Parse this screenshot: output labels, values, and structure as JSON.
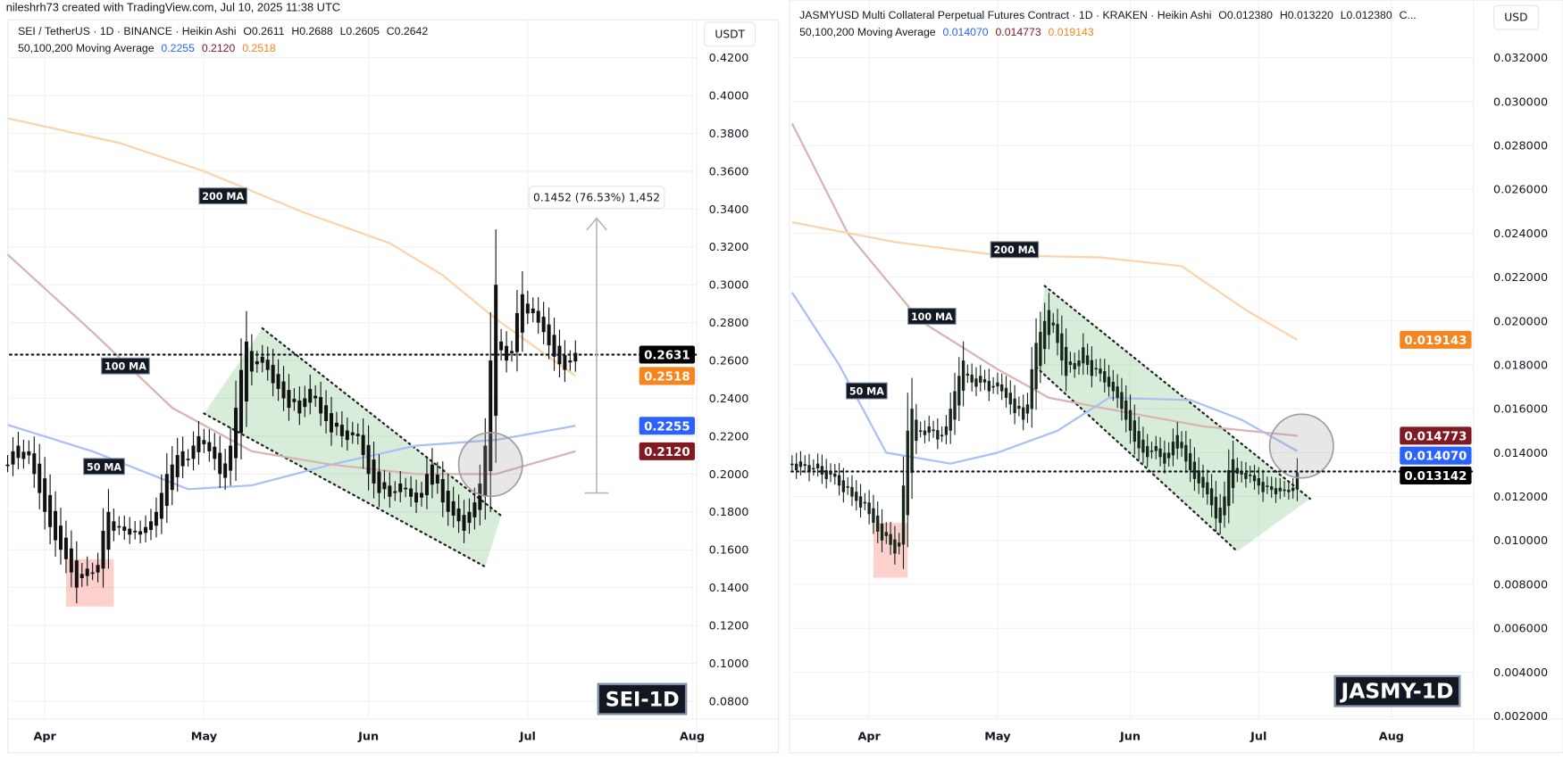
{
  "credit": "nileshrh73 created with TradingView.com, Jul 10, 2025 11:38 UTC",
  "colors": {
    "ma50": "#a9bff5",
    "ma100": "#d9b3b3",
    "ma200": "#fdd3ab",
    "channel_fill": "#4caf50",
    "box_fill": "#f44336",
    "circle": "#9e9e9e",
    "candle_sei": "#111111",
    "candle_jasmy": "#17261a",
    "price_line": "#131722"
  },
  "chart_data": [
    {
      "type": "candlestick",
      "symbol_line": {
        "title": "SEI / TetherUS · 1D · BINANCE · Heikin Ashi",
        "o": "O0.2611",
        "h": "H0.2688",
        "l": "L0.2605",
        "c": "C0.2642"
      },
      "ma_line": {
        "label": "50,100,200 Moving Average",
        "ma50": "0.2255",
        "ma100": "0.2120",
        "ma200": "0.2518"
      },
      "currency": "USDT",
      "tag": "SEI-1D",
      "start_date": "2025-03-25",
      "closes": [
        0.205,
        0.212,
        0.215,
        0.208,
        0.212,
        0.2,
        0.19,
        0.18,
        0.172,
        0.165,
        0.16,
        0.155,
        0.148,
        0.14,
        0.145,
        0.15,
        0.148,
        0.152,
        0.17,
        0.18,
        0.175,
        0.172,
        0.17,
        0.168,
        0.17,
        0.168,
        0.172,
        0.175,
        0.18,
        0.19,
        0.2,
        0.205,
        0.21,
        0.212,
        0.208,
        0.215,
        0.22,
        0.218,
        0.212,
        0.208,
        0.2,
        0.198,
        0.215,
        0.235,
        0.255,
        0.27,
        0.265,
        0.258,
        0.262,
        0.255,
        0.248,
        0.245,
        0.24,
        0.235,
        0.238,
        0.232,
        0.24,
        0.245,
        0.24,
        0.232,
        0.228,
        0.222,
        0.225,
        0.22,
        0.218,
        0.222,
        0.22,
        0.21,
        0.2,
        0.195,
        0.19,
        0.192,
        0.188,
        0.19,
        0.195,
        0.192,
        0.188,
        0.185,
        0.19,
        0.2,
        0.205,
        0.195,
        0.185,
        0.18,
        0.178,
        0.175,
        0.17,
        0.18,
        0.185,
        0.195,
        0.215,
        0.26,
        0.3,
        0.27,
        0.26,
        0.265,
        0.285,
        0.295,
        0.29,
        0.285,
        0.28,
        0.275,
        0.268,
        0.262,
        0.258,
        0.255,
        0.26,
        0.264
      ],
      "ma50": [
        [
          "2025-03-25",
          0.226
        ],
        [
          "2025-04-10",
          0.212
        ],
        [
          "2025-04-28",
          0.192
        ],
        [
          "2025-05-10",
          0.194
        ],
        [
          "2025-05-25",
          0.205
        ],
        [
          "2025-06-10",
          0.215
        ],
        [
          "2025-06-25",
          0.218
        ],
        [
          "2025-07-10",
          0.2255
        ]
      ],
      "ma100": [
        [
          "2025-03-25",
          0.316
        ],
        [
          "2025-04-10",
          0.275
        ],
        [
          "2025-04-25",
          0.235
        ],
        [
          "2025-05-10",
          0.212
        ],
        [
          "2025-05-25",
          0.205
        ],
        [
          "2025-06-10",
          0.2
        ],
        [
          "2025-06-25",
          0.2
        ],
        [
          "2025-07-10",
          0.212
        ]
      ],
      "ma200": [
        [
          "2025-03-25",
          0.388
        ],
        [
          "2025-04-15",
          0.375
        ],
        [
          "2025-05-01",
          0.36
        ],
        [
          "2025-05-20",
          0.338
        ],
        [
          "2025-06-05",
          0.322
        ],
        [
          "2025-06-15",
          0.305
        ],
        [
          "2025-06-25",
          0.282
        ],
        [
          "2025-07-10",
          0.2518
        ]
      ],
      "ma_labels": [
        "200 MA",
        "100 MA",
        "50 MA"
      ],
      "y_ticks": [
        "0.4200",
        "0.4000",
        "0.3800",
        "0.3600",
        "0.3400",
        "0.3200",
        "0.3000",
        "0.2800",
        "0.2600",
        "0.2400",
        "0.2200",
        "0.2000",
        "0.1800",
        "0.1600",
        "0.1400",
        "0.1200",
        "0.1000",
        "0.0800"
      ],
      "x_ticks": [
        [
          "Apr",
          "2025-04-01"
        ],
        [
          "May",
          "2025-05-01"
        ],
        [
          "Jun",
          "2025-06-01"
        ],
        [
          "Jul",
          "2025-07-01"
        ],
        [
          "Aug",
          "2025-08-01"
        ]
      ],
      "price_badges": [
        {
          "value": "0.2631",
          "color": "#000000"
        },
        {
          "value": "0.2518",
          "color": "#f7851e"
        },
        {
          "value": "0.2255",
          "color": "#2962ff"
        },
        {
          "value": "0.2120",
          "color": "#801922"
        }
      ],
      "last_price": 0.2631,
      "channel": [
        [
          "2025-05-01",
          0.232
        ],
        [
          "2025-05-12",
          0.277
        ],
        [
          "2025-06-26",
          0.178
        ],
        [
          "2025-06-23",
          0.151
        ]
      ],
      "box": {
        "from": "2025-04-05",
        "to": "2025-04-14",
        "low": 0.13,
        "high": 0.155
      },
      "circle": {
        "date": "2025-06-24",
        "price": 0.205
      },
      "measure": {
        "date": "2025-07-14",
        "from": 0.19,
        "to": 0.3352,
        "label": "0.1452 (76.53%) 1,452"
      }
    },
    {
      "type": "candlestick",
      "symbol_line": {
        "title": "JASMYUSD Multi Collateral Perpetual Futures Contract · 1D · KRAKEN · Heikin Ashi",
        "o": "O0.012380",
        "h": "H0.013220",
        "l": "L0.012380",
        "c": "C..."
      },
      "ma_line": {
        "label": "50,100,200 Moving Average",
        "ma50": "0.014070",
        "ma100": "0.014773",
        "ma200": "0.019143"
      },
      "currency": "USD",
      "tag": "JASMY-1D",
      "start_date": "2025-03-14",
      "closes": [
        0.0135,
        0.0132,
        0.0136,
        0.0134,
        0.0131,
        0.0133,
        0.0135,
        0.013,
        0.0128,
        0.0131,
        0.0129,
        0.0125,
        0.0122,
        0.0124,
        0.012,
        0.0118,
        0.0115,
        0.0117,
        0.0112,
        0.0108,
        0.0104,
        0.01,
        0.0102,
        0.0098,
        0.0094,
        0.0099,
        0.0125,
        0.015,
        0.016,
        0.0155,
        0.015,
        0.0148,
        0.0152,
        0.015,
        0.0146,
        0.0148,
        0.0152,
        0.016,
        0.0168,
        0.0175,
        0.0182,
        0.0176,
        0.0172,
        0.017,
        0.0175,
        0.0172,
        0.0168,
        0.017,
        0.0172,
        0.0168,
        0.0165,
        0.0162,
        0.0158,
        0.016,
        0.0155,
        0.0162,
        0.0178,
        0.019,
        0.0195,
        0.02,
        0.0205,
        0.0198,
        0.019,
        0.0182,
        0.0175,
        0.018,
        0.0178,
        0.0182,
        0.0188,
        0.018,
        0.0175,
        0.0178,
        0.0176,
        0.0172,
        0.017,
        0.0168,
        0.0165,
        0.016,
        0.0155,
        0.015,
        0.0145,
        0.0142,
        0.014,
        0.0138,
        0.0141,
        0.0143,
        0.0138,
        0.0135,
        0.014,
        0.0145,
        0.0148,
        0.0142,
        0.0136,
        0.0132,
        0.0128,
        0.0126,
        0.0124,
        0.0121,
        0.0116,
        0.011,
        0.0108,
        0.012,
        0.0132,
        0.0137,
        0.0133,
        0.013,
        0.0128,
        0.013,
        0.0127,
        0.0125,
        0.0122,
        0.0125,
        0.0123,
        0.0121,
        0.0124,
        0.0123,
        0.0122,
        0.0124,
        0.0131
      ],
      "ma50": [
        [
          "2025-03-14",
          0.0213
        ],
        [
          "2025-03-25",
          0.018
        ],
        [
          "2025-04-05",
          0.014
        ],
        [
          "2025-04-20",
          0.0135
        ],
        [
          "2025-05-01",
          0.014
        ],
        [
          "2025-05-15",
          0.015
        ],
        [
          "2025-05-27",
          0.0165
        ],
        [
          "2025-06-15",
          0.0164
        ],
        [
          "2025-06-27",
          0.0155
        ],
        [
          "2025-07-10",
          0.01407
        ]
      ],
      "ma100": [
        [
          "2025-03-14",
          0.029
        ],
        [
          "2025-03-27",
          0.024
        ],
        [
          "2025-04-13",
          0.02
        ],
        [
          "2025-05-01",
          0.0178
        ],
        [
          "2025-05-13",
          0.0165
        ],
        [
          "2025-06-01",
          0.0158
        ],
        [
          "2025-06-18",
          0.0152
        ],
        [
          "2025-07-10",
          0.01477
        ]
      ],
      "ma200": [
        [
          "2025-03-14",
          0.0245
        ],
        [
          "2025-04-07",
          0.0236
        ],
        [
          "2025-05-01",
          0.023
        ],
        [
          "2025-05-25",
          0.0229
        ],
        [
          "2025-06-13",
          0.0225
        ],
        [
          "2025-06-28",
          0.0205
        ],
        [
          "2025-07-10",
          0.01914
        ]
      ],
      "ma_labels": [
        "200 MA",
        "100 MA",
        "50 MA"
      ],
      "y_ticks": [
        "0.032000",
        "0.030000",
        "0.028000",
        "0.026000",
        "0.024000",
        "0.022000",
        "0.020000",
        "0.018000",
        "0.016000",
        "0.014000",
        "0.012000",
        "0.010000",
        "0.008000",
        "0.006000",
        "0.004000",
        "0.002000"
      ],
      "x_ticks": [
        [
          "Apr",
          "2025-04-01"
        ],
        [
          "May",
          "2025-05-01"
        ],
        [
          "Jun",
          "2025-06-01"
        ],
        [
          "Jul",
          "2025-07-01"
        ],
        [
          "Aug",
          "2025-08-01"
        ]
      ],
      "price_badges": [
        {
          "value": "0.019143",
          "color": "#f7851e"
        },
        {
          "value": "0.014773",
          "color": "#801922"
        },
        {
          "value": "0.014070",
          "color": "#2962ff"
        },
        {
          "value": "0.013142",
          "color": "#000000"
        }
      ],
      "last_price": 0.013142,
      "channel": [
        [
          "2025-05-10",
          0.0179
        ],
        [
          "2025-05-12",
          0.0216
        ],
        [
          "2025-07-13",
          0.0119
        ],
        [
          "2025-06-26",
          0.0095
        ]
      ],
      "box": {
        "from": "2025-04-02",
        "to": "2025-04-10",
        "low": 0.0083,
        "high": 0.0108
      },
      "circle": {
        "date": "2025-07-11",
        "price": 0.0143
      }
    }
  ]
}
